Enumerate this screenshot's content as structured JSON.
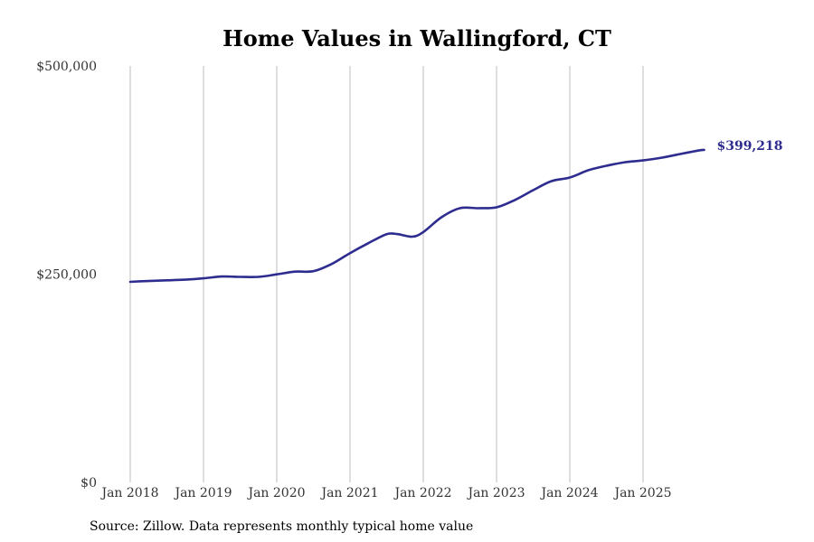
{
  "chart_data": {
    "type": "line",
    "title": "Home Values in Wallingford, CT",
    "xlabel": "",
    "ylabel": "",
    "ylim": [
      0,
      500000
    ],
    "y_ticks": [
      {
        "value": 0,
        "label": "$0"
      },
      {
        "value": 250000,
        "label": "$250,000"
      },
      {
        "value": 500000,
        "label": "$500,000"
      }
    ],
    "x_range": [
      2018.0,
      2025.833
    ],
    "x_ticks": [
      {
        "value": 2018,
        "label": "Jan 2018"
      },
      {
        "value": 2019,
        "label": "Jan 2019"
      },
      {
        "value": 2020,
        "label": "Jan 2020"
      },
      {
        "value": 2021,
        "label": "Jan 2021"
      },
      {
        "value": 2022,
        "label": "Jan 2022"
      },
      {
        "value": 2023,
        "label": "Jan 2023"
      },
      {
        "value": 2024,
        "label": "Jan 2024"
      },
      {
        "value": 2025,
        "label": "Jan 2025"
      }
    ],
    "grid": "vertical",
    "series": [
      {
        "name": "Typical home value",
        "color": "#2e2d8f",
        "points": [
          {
            "x": 2018.0,
            "y": 240800
          },
          {
            "x": 2018.25,
            "y": 241800
          },
          {
            "x": 2018.5,
            "y": 242600
          },
          {
            "x": 2018.75,
            "y": 243400
          },
          {
            "x": 2019.0,
            "y": 245000
          },
          {
            "x": 2019.25,
            "y": 247200
          },
          {
            "x": 2019.5,
            "y": 246800
          },
          {
            "x": 2019.75,
            "y": 246700
          },
          {
            "x": 2020.0,
            "y": 249800
          },
          {
            "x": 2020.25,
            "y": 253000
          },
          {
            "x": 2020.5,
            "y": 253600
          },
          {
            "x": 2020.75,
            "y": 262300
          },
          {
            "x": 2021.0,
            "y": 275300
          },
          {
            "x": 2021.25,
            "y": 287200
          },
          {
            "x": 2021.5,
            "y": 298000
          },
          {
            "x": 2021.65,
            "y": 298000
          },
          {
            "x": 2021.85,
            "y": 295000
          },
          {
            "x": 2022.0,
            "y": 300500
          },
          {
            "x": 2022.25,
            "y": 318400
          },
          {
            "x": 2022.5,
            "y": 329200
          },
          {
            "x": 2022.75,
            "y": 329200
          },
          {
            "x": 2023.0,
            "y": 330300
          },
          {
            "x": 2023.25,
            "y": 339000
          },
          {
            "x": 2023.5,
            "y": 350900
          },
          {
            "x": 2023.75,
            "y": 361700
          },
          {
            "x": 2024.0,
            "y": 366000
          },
          {
            "x": 2024.25,
            "y": 374700
          },
          {
            "x": 2024.5,
            "y": 380100
          },
          {
            "x": 2024.75,
            "y": 384400
          },
          {
            "x": 2025.0,
            "y": 386600
          },
          {
            "x": 2025.25,
            "y": 389800
          },
          {
            "x": 2025.5,
            "y": 394100
          },
          {
            "x": 2025.75,
            "y": 398400
          },
          {
            "x": 2025.833,
            "y": 399218
          }
        ]
      }
    ],
    "end_label": "$399,218"
  },
  "caption": "Source: Zillow. Data represents monthly typical home value"
}
